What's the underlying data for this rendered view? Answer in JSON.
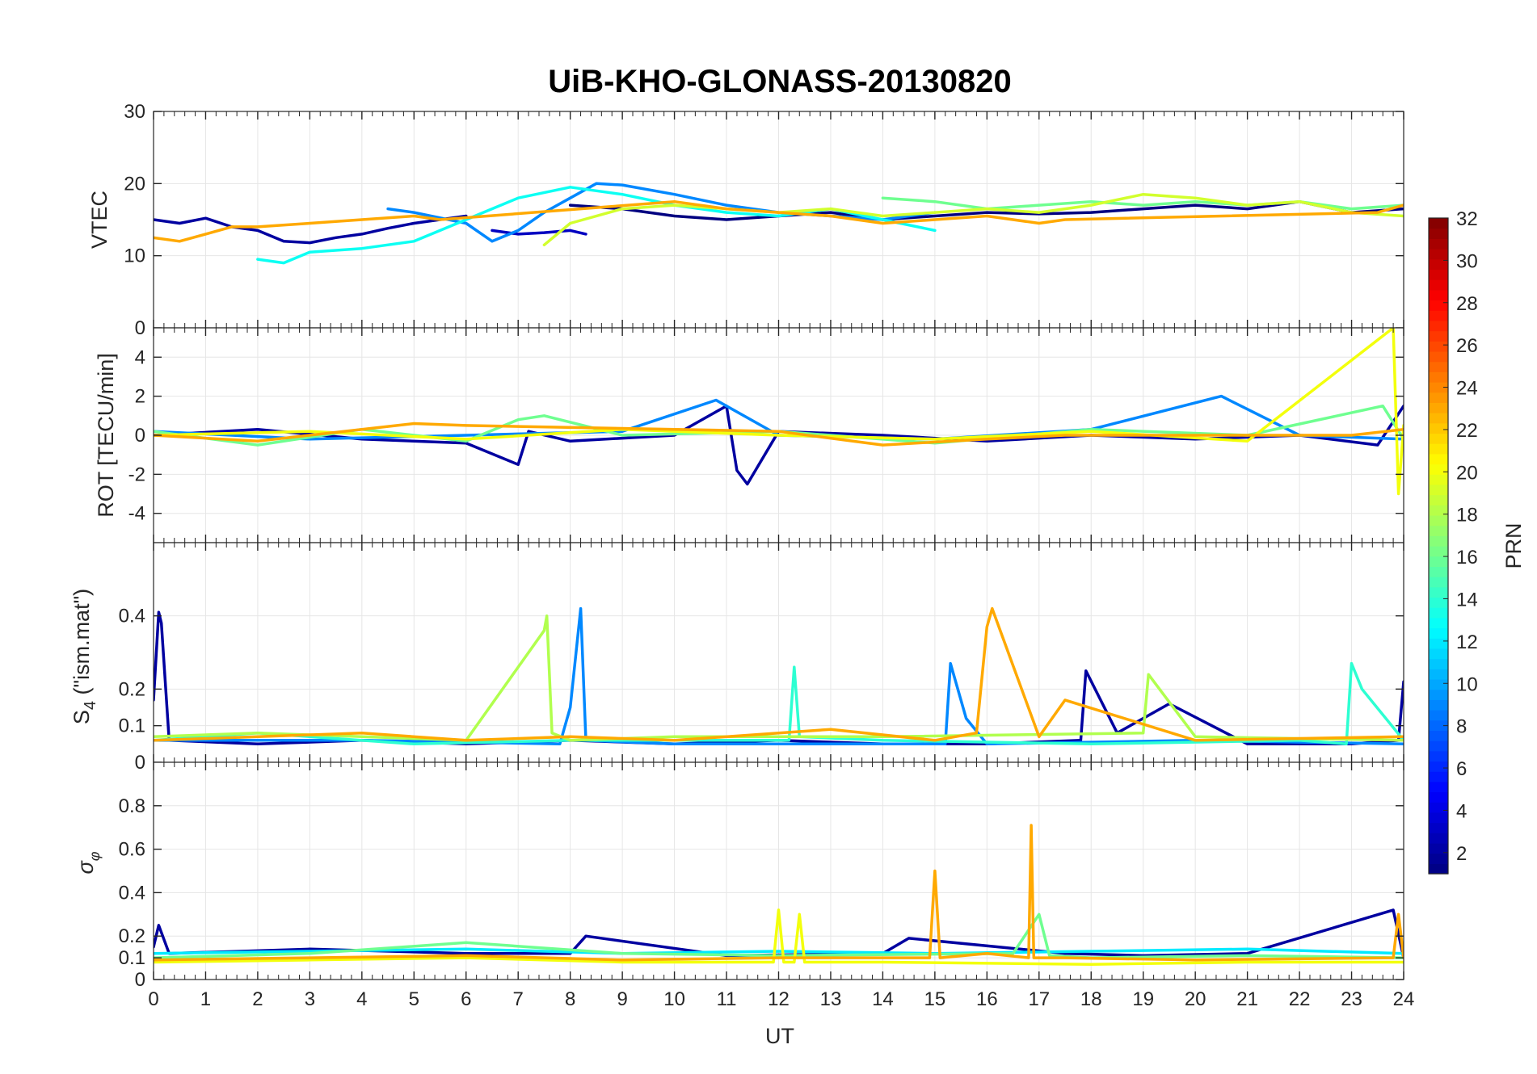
{
  "chart_data": {
    "type": "line",
    "title": "UiB-KHO-GLONASS-20130820",
    "xlabel": "UT",
    "xlim": [
      0,
      24
    ],
    "xticks": [
      "0",
      "1",
      "2",
      "3",
      "4",
      "5",
      "6",
      "7",
      "8",
      "9",
      "10",
      "11",
      "12",
      "13",
      "14",
      "15",
      "16",
      "17",
      "18",
      "19",
      "20",
      "21",
      "22",
      "23",
      "24"
    ],
    "grid": true,
    "colorbar": {
      "label": "PRN",
      "range": [
        1,
        32
      ],
      "colormap": "jet",
      "ticks": [
        "2",
        "4",
        "6",
        "8",
        "10",
        "12",
        "14",
        "16",
        "18",
        "20",
        "22",
        "24",
        "26",
        "28",
        "30",
        "32"
      ]
    },
    "panels": [
      {
        "id": "vtec",
        "ylabel": "VTEC",
        "ylim": [
          0,
          30
        ],
        "yticks": [
          "0",
          "10",
          "20",
          "30"
        ],
        "series": [
          {
            "name": "PRN 2",
            "prn": 2,
            "x": [
              0.0,
              0.5,
              1.0,
              1.5,
              2.0,
              2.5,
              3.0,
              3.5,
              4.0,
              4.5,
              5.0,
              5.5,
              6.0
            ],
            "y": [
              15.0,
              14.5,
              15.2,
              14.0,
              13.5,
              12.0,
              11.8,
              12.5,
              13.0,
              13.8,
              14.5,
              15.0,
              15.5
            ]
          },
          {
            "name": "PRN 3",
            "prn": 3,
            "x": [
              6.5,
              7.0,
              7.5,
              8.0,
              8.3
            ],
            "y": [
              13.5,
              13.0,
              13.2,
              13.5,
              13.0
            ]
          },
          {
            "name": "PRN 1",
            "prn": 1,
            "x": [
              8.0,
              9.0,
              10.0,
              11.0,
              12.0,
              13.0,
              14.0,
              15.0,
              16.0,
              17.0,
              18.0,
              19.0,
              20.0,
              21.0,
              22.0,
              23.0,
              24.0
            ],
            "y": [
              17.0,
              16.5,
              15.5,
              15.0,
              15.5,
              16.0,
              15.0,
              15.5,
              16.0,
              15.8,
              16.0,
              16.5,
              17.0,
              16.5,
              17.5,
              16.0,
              16.5
            ]
          },
          {
            "name": "PRN 9",
            "prn": 9,
            "x": [
              4.5,
              5.0,
              6.0,
              6.5,
              7.0,
              7.5,
              8.0,
              8.5,
              9.0,
              10.0,
              11.0,
              12.0,
              13.0,
              14.0,
              15.0
            ],
            "y": [
              16.5,
              16.0,
              14.5,
              12.0,
              13.5,
              16.0,
              18.0,
              20.0,
              19.8,
              18.5,
              17.0,
              16.0,
              15.5,
              15.0,
              16.0
            ]
          },
          {
            "name": "PRN 13",
            "prn": 13,
            "x": [
              2.0,
              2.5,
              3.0,
              4.0,
              5.0,
              6.0,
              7.0,
              8.0,
              9.0,
              10.0,
              11.0,
              12.0,
              13.0,
              14.0,
              15.0
            ],
            "y": [
              9.5,
              9.0,
              10.5,
              11.0,
              12.0,
              15.0,
              18.0,
              19.5,
              18.5,
              17.0,
              16.0,
              15.5,
              16.5,
              15.0,
              13.5
            ]
          },
          {
            "name": "PRN 16",
            "prn": 16,
            "x": [
              14.0,
              15.0,
              16.0,
              17.0,
              18.0,
              19.0,
              20.0,
              21.0,
              22.0,
              23.0,
              24.0
            ],
            "y": [
              18.0,
              17.5,
              16.5,
              17.0,
              17.5,
              17.0,
              17.5,
              17.0,
              17.5,
              16.5,
              17.0
            ]
          },
          {
            "name": "PRN 19",
            "prn": 19,
            "x": [
              7.5,
              8.0,
              9.0,
              10.0,
              11.0,
              12.0,
              13.0,
              14.0,
              15.0,
              16.0,
              17.0,
              18.0,
              19.0,
              20.0,
              21.0,
              22.0,
              23.0,
              24.0
            ],
            "y": [
              11.5,
              14.5,
              16.5,
              17.0,
              16.5,
              16.0,
              16.5,
              15.5,
              16.0,
              16.5,
              16.0,
              17.0,
              18.5,
              18.0,
              17.0,
              17.5,
              16.0,
              15.5
            ]
          },
          {
            "name": "PRN 23",
            "prn": 23,
            "x": [
              0.0,
              0.5,
              1.0,
              1.5,
              2.0,
              3.0,
              4.0,
              5.0,
              5.5,
              10.0,
              11.0,
              12.0,
              13.0,
              14.0,
              15.0,
              16.0,
              17.0,
              17.5,
              23.5,
              24.0
            ],
            "y": [
              12.5,
              12.0,
              13.0,
              14.0,
              14.0,
              14.5,
              15.0,
              15.5,
              15.0,
              17.5,
              16.5,
              16.0,
              15.5,
              14.5,
              15.0,
              15.5,
              14.5,
              15.0,
              16.0,
              17.0
            ]
          }
        ]
      },
      {
        "id": "rot",
        "ylabel": "ROT [TECU/min]",
        "ylim": [
          -5.5,
          5.5
        ],
        "yticks": [
          "-4",
          "-2",
          "0",
          "2",
          "4"
        ],
        "series": [
          {
            "name": "PRN 2",
            "prn": 2,
            "x": [
              0,
              2,
              4,
              6,
              7,
              7.2,
              8,
              10,
              11,
              11.2,
              11.4,
              12,
              14,
              16,
              18,
              20,
              22,
              23.5,
              24
            ],
            "y": [
              0,
              0.3,
              -0.2,
              -0.4,
              -1.5,
              0.2,
              -0.3,
              0,
              1.5,
              -1.8,
              -2.5,
              0.2,
              0,
              -0.3,
              0,
              -0.2,
              0,
              -0.5,
              1.5
            ]
          },
          {
            "name": "PRN 9",
            "prn": 9,
            "x": [
              0,
              3,
              6,
              9,
              10.8,
              12,
              15,
              18,
              20.5,
              22,
              24
            ],
            "y": [
              0.2,
              -0.2,
              0,
              0.2,
              1.8,
              0,
              -0.2,
              0.3,
              2.0,
              0,
              -0.2
            ]
          },
          {
            "name": "PRN 16",
            "prn": 16,
            "x": [
              0,
              2,
              4,
              6,
              7,
              7.5,
              9,
              12,
              15,
              18,
              21,
              23.6,
              24
            ],
            "y": [
              0.2,
              -0.5,
              0.3,
              -0.3,
              0.8,
              1.0,
              0,
              0.2,
              -0.4,
              0.3,
              0,
              1.5,
              -0.2
            ]
          },
          {
            "name": "PRN 20",
            "prn": 20,
            "x": [
              0,
              3,
              6,
              9,
              12,
              15,
              18,
              21,
              23.8,
              23.9,
              24
            ],
            "y": [
              0,
              0.2,
              -0.2,
              0.3,
              0,
              -0.2,
              0.2,
              -0.3,
              5.5,
              -3.0,
              0.5
            ]
          },
          {
            "name": "PRN 23",
            "prn": 23,
            "x": [
              0,
              2,
              4,
              5,
              6,
              12,
              14,
              16,
              17.5,
              23,
              24
            ],
            "y": [
              0,
              -0.3,
              0.3,
              0.6,
              0.5,
              0.2,
              -0.5,
              -0.2,
              0,
              0,
              0.3
            ]
          }
        ]
      },
      {
        "id": "s4",
        "ylabel": "S4 (\"ism.mat\")",
        "ylim": [
          0,
          0.6
        ],
        "yticks": [
          "0",
          "0.1",
          "0.2",
          "0.4"
        ],
        "series": [
          {
            "name": "PRN 2",
            "prn": 2,
            "x": [
              0,
              0.1,
              0.15,
              0.3,
              2,
              4,
              6,
              8,
              10,
              12,
              14,
              16,
              17.8,
              17.9,
              18.5,
              19.5,
              21,
              23,
              23.9,
              24
            ],
            "y": [
              0.17,
              0.41,
              0.38,
              0.06,
              0.05,
              0.06,
              0.05,
              0.06,
              0.05,
              0.06,
              0.05,
              0.05,
              0.06,
              0.25,
              0.08,
              0.16,
              0.05,
              0.05,
              0.06,
              0.22
            ]
          },
          {
            "name": "PRN 9",
            "prn": 9,
            "x": [
              0,
              4,
              7.8,
              8.0,
              8.2,
              8.3,
              10,
              15.2,
              15.3,
              15.6,
              16,
              20,
              24
            ],
            "y": [
              0.06,
              0.06,
              0.05,
              0.15,
              0.42,
              0.06,
              0.05,
              0.05,
              0.27,
              0.12,
              0.05,
              0.06,
              0.05
            ]
          },
          {
            "name": "PRN 14",
            "prn": 14,
            "x": [
              0,
              2,
              5,
              8,
              12.2,
              12.3,
              12.4,
              14,
              18,
              22,
              22.9,
              23.0,
              23.2,
              24
            ],
            "y": [
              0.06,
              0.08,
              0.05,
              0.06,
              0.06,
              0.26,
              0.07,
              0.06,
              0.05,
              0.06,
              0.05,
              0.27,
              0.2,
              0.06
            ]
          },
          {
            "name": "PRN 18",
            "prn": 18,
            "x": [
              0,
              2,
              4,
              6,
              7.5,
              7.55,
              7.65,
              8,
              10,
              14,
              19,
              19.1,
              20,
              24
            ],
            "y": [
              0.07,
              0.08,
              0.07,
              0.06,
              0.36,
              0.4,
              0.08,
              0.06,
              0.07,
              0.07,
              0.08,
              0.24,
              0.07,
              0.06
            ]
          },
          {
            "name": "PRN 23",
            "prn": 23,
            "x": [
              0,
              2,
              4,
              6,
              8,
              10,
              13,
              15,
              15.8,
              16.0,
              16.1,
              17,
              17.5,
              20,
              24
            ],
            "y": [
              0.06,
              0.07,
              0.08,
              0.06,
              0.07,
              0.06,
              0.09,
              0.06,
              0.08,
              0.37,
              0.42,
              0.07,
              0.17,
              0.06,
              0.07
            ]
          }
        ]
      },
      {
        "id": "sigma_phi",
        "ylabel": "σφ",
        "ylim": [
          0,
          1
        ],
        "yticks": [
          "0",
          "0.1",
          "0.2",
          "0.4",
          "0.6",
          "0.8"
        ],
        "series": [
          {
            "name": "PRN 2",
            "prn": 2,
            "x": [
              0,
              0.1,
              0.3,
              3,
              6,
              8,
              8.3,
              11,
              14,
              14.5,
              17.5,
              19,
              21,
              23.8,
              24
            ],
            "y": [
              0.15,
              0.25,
              0.12,
              0.14,
              0.12,
              0.12,
              0.2,
              0.11,
              0.12,
              0.19,
              0.12,
              0.11,
              0.12,
              0.32,
              0.1
            ]
          },
          {
            "name": "PRN 12",
            "prn": 12,
            "x": [
              0,
              3,
              6,
              9,
              12,
              15,
              18,
              21,
              24
            ],
            "y": [
              0.12,
              0.13,
              0.14,
              0.12,
              0.13,
              0.12,
              0.13,
              0.14,
              0.12
            ]
          },
          {
            "name": "PRN 16",
            "prn": 16,
            "x": [
              0,
              3,
              6,
              9,
              12,
              16.5,
              17,
              17.2,
              18,
              21,
              24
            ],
            "y": [
              0.1,
              0.12,
              0.17,
              0.12,
              0.11,
              0.12,
              0.3,
              0.11,
              0.1,
              0.11,
              0.1
            ]
          },
          {
            "name": "PRN 20",
            "prn": 20,
            "x": [
              0,
              3,
              6,
              9,
              11.9,
              12.0,
              12.1,
              12.3,
              12.4,
              12.5,
              14,
              18,
              21,
              24
            ],
            "y": [
              0.08,
              0.09,
              0.1,
              0.08,
              0.08,
              0.32,
              0.08,
              0.08,
              0.3,
              0.08,
              0.08,
              0.07,
              0.08,
              0.08
            ]
          },
          {
            "name": "PRN 23",
            "prn": 23,
            "x": [
              0,
              3,
              6,
              9,
              12,
              14.9,
              15.0,
              15.1,
              16,
              16.8,
              16.85,
              16.9,
              17.5,
              20,
              23.8,
              23.9,
              24
            ],
            "y": [
              0.09,
              0.1,
              0.11,
              0.09,
              0.1,
              0.1,
              0.5,
              0.1,
              0.12,
              0.1,
              0.71,
              0.1,
              0.1,
              0.09,
              0.1,
              0.3,
              0.1
            ]
          }
        ]
      }
    ]
  }
}
